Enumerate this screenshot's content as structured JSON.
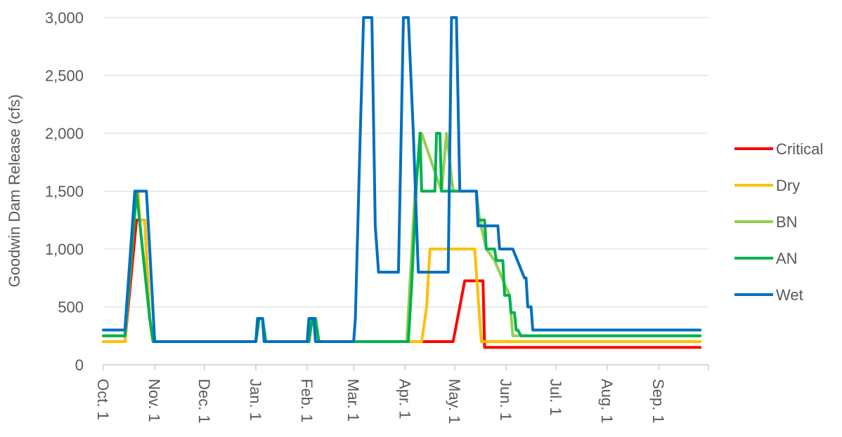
{
  "chart_data": {
    "type": "line",
    "title": "",
    "xlabel": "",
    "ylabel": "Goodwin Dam Release (cfs)",
    "ylim": [
      0,
      3000
    ],
    "yticks": [
      0,
      500,
      1000,
      1500,
      2000,
      2500,
      3000
    ],
    "ytick_labels": [
      "0",
      "500",
      "1,000",
      "1,500",
      "2,000",
      "2,500",
      "3,000"
    ],
    "xlim": [
      0,
      365
    ],
    "xtick_positions": [
      0,
      31,
      61,
      92,
      123,
      151,
      182,
      212,
      243,
      273,
      304,
      335
    ],
    "xtick_labels": [
      "Oct. 1",
      "Nov. 1",
      "Dec. 1",
      "Jan. 1",
      "Feb. 1",
      "Mar. 1",
      "Apr. 1",
      "May. 1",
      "Jun. 1",
      "Jul. 1",
      "Aug. 1",
      "Sep. 1"
    ],
    "grid": "horizontal",
    "legend": "right",
    "series": [
      {
        "name": "Critical",
        "color": "#ff0000",
        "x": [
          0,
          13,
          20,
          21,
          24,
          25,
          28,
          30,
          92,
          94,
          96,
          98,
          124,
          126,
          128,
          130,
          195,
          197,
          198,
          200,
          205,
          210,
          211,
          218,
          225,
          228,
          229,
          230,
          360
        ],
        "y": [
          200,
          200,
          1250,
          1250,
          1250,
          1250,
          400,
          200,
          200,
          400,
          400,
          200,
          200,
          400,
          400,
          200,
          200,
          200,
          200,
          200,
          200,
          200,
          200,
          725,
          725,
          725,
          725,
          150,
          150
        ]
      },
      {
        "name": "Dry",
        "color": "#ffc000",
        "x": [
          0,
          13,
          20,
          21,
          22,
          24,
          25,
          28,
          30,
          92,
          94,
          96,
          98,
          124,
          126,
          128,
          130,
          190,
          192,
          195,
          197,
          200,
          224,
          228,
          230,
          232,
          360
        ],
        "y": [
          200,
          200,
          1500,
          1500,
          1250,
          1250,
          1250,
          400,
          200,
          200,
          400,
          400,
          200,
          200,
          400,
          400,
          200,
          200,
          200,
          500,
          1000,
          1000,
          1000,
          200,
          200,
          200,
          200
        ]
      },
      {
        "name": "BN",
        "color": "#92d050",
        "x": [
          0,
          13,
          20,
          28,
          30,
          92,
          94,
          96,
          98,
          124,
          126,
          128,
          130,
          180,
          183,
          188,
          192,
          204,
          207,
          211,
          215,
          225,
          227,
          231,
          236,
          245,
          247,
          360
        ],
        "y": [
          250,
          250,
          1500,
          400,
          200,
          200,
          400,
          400,
          200,
          200,
          400,
          400,
          200,
          200,
          200,
          1500,
          2000,
          1500,
          2000,
          1500,
          1500,
          1500,
          1250,
          1000,
          900,
          600,
          250,
          250
        ]
      },
      {
        "name": "AN",
        "color": "#00b050",
        "x": [
          0,
          13,
          20,
          28,
          30,
          92,
          94,
          96,
          98,
          124,
          126,
          128,
          130,
          182,
          184,
          186,
          189,
          191,
          192,
          200,
          201,
          203,
          204,
          206,
          225,
          226,
          230,
          231,
          236,
          237,
          241,
          242,
          245,
          246,
          248,
          249,
          250,
          252,
          360
        ],
        "y": [
          250,
          250,
          1500,
          400,
          200,
          200,
          400,
          400,
          200,
          200,
          400,
          400,
          200,
          200,
          200,
          700,
          1600,
          2000,
          1500,
          1500,
          2000,
          2000,
          1500,
          1500,
          1500,
          1250,
          1250,
          1000,
          1000,
          900,
          900,
          600,
          600,
          450,
          450,
          300,
          300,
          250,
          250
        ]
      },
      {
        "name": "Wet",
        "color": "#0070c0",
        "x": [
          0,
          13,
          19,
          26,
          28,
          31,
          92,
          93,
          96,
          97,
          123,
          124,
          127,
          128,
          151,
          152,
          155,
          157,
          162,
          164,
          166,
          178,
          179,
          181,
          182,
          184,
          187,
          189,
          190,
          208,
          210,
          212,
          213,
          215,
          225,
          226,
          228,
          229,
          238,
          239,
          246,
          247,
          254,
          255,
          256,
          258,
          259,
          262,
          263,
          360
        ],
        "y": [
          300,
          300,
          1500,
          1500,
          1000,
          200,
          200,
          400,
          400,
          200,
          200,
          400,
          400,
          200,
          200,
          400,
          2000,
          3000,
          3000,
          1200,
          800,
          800,
          1500,
          3000,
          3000,
          3000,
          2000,
          1200,
          800,
          800,
          3000,
          3000,
          3000,
          1500,
          1500,
          1200,
          1200,
          1200,
          1200,
          1000,
          1000,
          1000,
          750,
          750,
          500,
          500,
          300,
          300,
          300,
          300
        ]
      }
    ]
  }
}
